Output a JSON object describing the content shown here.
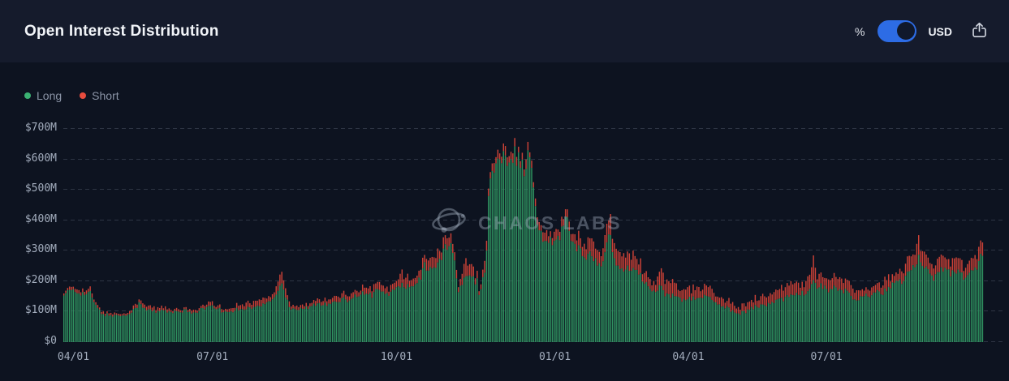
{
  "header": {
    "title": "Open Interest Distribution",
    "toggle": {
      "left_label": "%",
      "right_label": "USD",
      "selected": "USD",
      "color": "#2d6ce5"
    },
    "share_icon": "share-export-icon"
  },
  "legend": [
    {
      "label": "Long",
      "color": "#3bb273"
    },
    {
      "label": "Short",
      "color": "#e64c3e"
    }
  ],
  "watermark": {
    "text": "CHAOS LABS",
    "icon": "chaos-labs-logo-icon"
  },
  "chart_data": {
    "type": "bar",
    "stacked": true,
    "title": "Open Interest Distribution",
    "unit": "USD millions",
    "series_names": [
      "Long",
      "Short"
    ],
    "colors": {
      "long": "#2f9360",
      "short": "#cc4237"
    },
    "ylim": [
      0,
      700
    ],
    "grid": "horizontal-dashed",
    "legend_position": "top-left",
    "y_ticks": [
      {
        "label": "$0",
        "value": 0
      },
      {
        "label": "$100M",
        "value": 100
      },
      {
        "label": "$200M",
        "value": 200
      },
      {
        "label": "$300M",
        "value": 300
      },
      {
        "label": "$400M",
        "value": 400
      },
      {
        "label": "$500M",
        "value": 500
      },
      {
        "label": "$600M",
        "value": 600
      },
      {
        "label": "$700M",
        "value": 700
      }
    ],
    "x_ticks": [
      {
        "label": "04/01",
        "pos": 0.011
      },
      {
        "label": "07/01",
        "pos": 0.162
      },
      {
        "label": "10/01",
        "pos": 0.362
      },
      {
        "label": "01/01",
        "pos": 0.534
      },
      {
        "label": "04/01",
        "pos": 0.679
      },
      {
        "label": "07/01",
        "pos": 0.829
      }
    ],
    "n_bars": 490,
    "anchor_format": "[x_fraction_of_plot, long_$M, short_$M] sampled estimates",
    "anchors": [
      [
        0.0,
        150,
        8
      ],
      [
        0.006,
        168,
        10
      ],
      [
        0.015,
        170,
        12
      ],
      [
        0.024,
        160,
        10
      ],
      [
        0.03,
        158,
        12
      ],
      [
        0.035,
        120,
        10
      ],
      [
        0.041,
        98,
        7
      ],
      [
        0.048,
        88,
        6
      ],
      [
        0.055,
        90,
        7
      ],
      [
        0.063,
        86,
        6
      ],
      [
        0.071,
        92,
        7
      ],
      [
        0.077,
        105,
        9
      ],
      [
        0.083,
        125,
        14
      ],
      [
        0.09,
        108,
        10
      ],
      [
        0.099,
        100,
        10
      ],
      [
        0.108,
        108,
        10
      ],
      [
        0.116,
        96,
        9
      ],
      [
        0.125,
        98,
        8
      ],
      [
        0.134,
        102,
        9
      ],
      [
        0.143,
        96,
        8
      ],
      [
        0.152,
        108,
        10
      ],
      [
        0.159,
        118,
        12
      ],
      [
        0.166,
        112,
        11
      ],
      [
        0.174,
        98,
        9
      ],
      [
        0.183,
        102,
        10
      ],
      [
        0.191,
        108,
        16
      ],
      [
        0.2,
        112,
        18
      ],
      [
        0.209,
        112,
        16
      ],
      [
        0.218,
        120,
        18
      ],
      [
        0.225,
        135,
        14
      ],
      [
        0.231,
        150,
        20
      ],
      [
        0.237,
        195,
        38
      ],
      [
        0.242,
        150,
        25
      ],
      [
        0.247,
        115,
        14
      ],
      [
        0.253,
        108,
        12
      ],
      [
        0.262,
        112,
        12
      ],
      [
        0.271,
        118,
        12
      ],
      [
        0.28,
        125,
        13
      ],
      [
        0.288,
        128,
        14
      ],
      [
        0.297,
        132,
        15
      ],
      [
        0.306,
        138,
        16
      ],
      [
        0.315,
        148,
        16
      ],
      [
        0.322,
        158,
        18
      ],
      [
        0.328,
        162,
        20
      ],
      [
        0.335,
        155,
        18
      ],
      [
        0.341,
        172,
        24
      ],
      [
        0.347,
        160,
        18
      ],
      [
        0.354,
        162,
        20
      ],
      [
        0.362,
        170,
        22
      ],
      [
        0.368,
        196,
        42
      ],
      [
        0.372,
        180,
        30
      ],
      [
        0.377,
        175,
        28
      ],
      [
        0.383,
        190,
        30
      ],
      [
        0.388,
        205,
        25
      ],
      [
        0.392,
        262,
        28
      ],
      [
        0.397,
        225,
        30
      ],
      [
        0.401,
        252,
        33
      ],
      [
        0.406,
        255,
        35
      ],
      [
        0.41,
        265,
        35
      ],
      [
        0.414,
        305,
        35
      ],
      [
        0.418,
        320,
        40
      ],
      [
        0.422,
        315,
        30
      ],
      [
        0.425,
        272,
        28
      ],
      [
        0.429,
        162,
        18
      ],
      [
        0.432,
        185,
        20
      ],
      [
        0.437,
        215,
        50
      ],
      [
        0.441,
        215,
        40
      ],
      [
        0.445,
        210,
        30
      ],
      [
        0.45,
        200,
        25
      ],
      [
        0.453,
        150,
        15
      ],
      [
        0.457,
        220,
        30
      ],
      [
        0.46,
        285,
        35
      ],
      [
        0.463,
        530,
        30
      ],
      [
        0.467,
        575,
        25
      ],
      [
        0.471,
        590,
        25
      ],
      [
        0.476,
        610,
        25
      ],
      [
        0.482,
        600,
        25
      ],
      [
        0.487,
        615,
        28
      ],
      [
        0.49,
        640,
        23
      ],
      [
        0.494,
        600,
        25
      ],
      [
        0.498,
        585,
        20
      ],
      [
        0.503,
        595,
        25
      ],
      [
        0.506,
        590,
        20
      ],
      [
        0.51,
        580,
        25
      ],
      [
        0.512,
        470,
        25
      ],
      [
        0.516,
        370,
        25
      ],
      [
        0.52,
        345,
        25
      ],
      [
        0.526,
        340,
        30
      ],
      [
        0.531,
        325,
        28
      ],
      [
        0.537,
        330,
        30
      ],
      [
        0.543,
        390,
        28
      ],
      [
        0.549,
        400,
        25
      ],
      [
        0.554,
        330,
        30
      ],
      [
        0.559,
        310,
        38
      ],
      [
        0.564,
        280,
        45
      ],
      [
        0.57,
        290,
        45
      ],
      [
        0.575,
        275,
        50
      ],
      [
        0.581,
        255,
        45
      ],
      [
        0.586,
        245,
        40
      ],
      [
        0.591,
        330,
        60
      ],
      [
        0.594,
        340,
        62
      ],
      [
        0.599,
        280,
        45
      ],
      [
        0.603,
        250,
        45
      ],
      [
        0.608,
        240,
        50
      ],
      [
        0.614,
        245,
        50
      ],
      [
        0.619,
        235,
        45
      ],
      [
        0.624,
        230,
        40
      ],
      [
        0.63,
        205,
        35
      ],
      [
        0.635,
        190,
        30
      ],
      [
        0.64,
        165,
        28
      ],
      [
        0.645,
        165,
        35
      ],
      [
        0.649,
        190,
        50
      ],
      [
        0.654,
        155,
        42
      ],
      [
        0.66,
        150,
        40
      ],
      [
        0.665,
        148,
        35
      ],
      [
        0.672,
        142,
        30
      ],
      [
        0.679,
        138,
        30
      ],
      [
        0.686,
        146,
        32
      ],
      [
        0.691,
        138,
        28
      ],
      [
        0.698,
        148,
        30
      ],
      [
        0.706,
        142,
        28
      ],
      [
        0.713,
        122,
        25
      ],
      [
        0.718,
        118,
        22
      ],
      [
        0.723,
        112,
        25
      ],
      [
        0.73,
        98,
        20
      ],
      [
        0.736,
        93,
        20
      ],
      [
        0.743,
        103,
        22
      ],
      [
        0.75,
        112,
        25
      ],
      [
        0.757,
        118,
        28
      ],
      [
        0.764,
        122,
        30
      ],
      [
        0.771,
        132,
        32
      ],
      [
        0.778,
        138,
        30
      ],
      [
        0.784,
        148,
        35
      ],
      [
        0.79,
        158,
        40
      ],
      [
        0.795,
        162,
        35
      ],
      [
        0.801,
        158,
        35
      ],
      [
        0.806,
        162,
        40
      ],
      [
        0.811,
        172,
        40
      ],
      [
        0.815,
        205,
        68
      ],
      [
        0.82,
        178,
        40
      ],
      [
        0.825,
        182,
        35
      ],
      [
        0.831,
        172,
        35
      ],
      [
        0.836,
        178,
        35
      ],
      [
        0.841,
        176,
        32
      ],
      [
        0.847,
        170,
        30
      ],
      [
        0.852,
        168,
        30
      ],
      [
        0.857,
        148,
        28
      ],
      [
        0.862,
        133,
        28
      ],
      [
        0.866,
        143,
        25
      ],
      [
        0.871,
        148,
        22
      ],
      [
        0.877,
        152,
        22
      ],
      [
        0.882,
        158,
        25
      ],
      [
        0.887,
        162,
        28
      ],
      [
        0.892,
        168,
        30
      ],
      [
        0.898,
        182,
        32
      ],
      [
        0.903,
        192,
        30
      ],
      [
        0.908,
        198,
        32
      ],
      [
        0.914,
        208,
        35
      ],
      [
        0.919,
        222,
        40
      ],
      [
        0.924,
        242,
        45
      ],
      [
        0.929,
        278,
        60
      ],
      [
        0.933,
        262,
        45
      ],
      [
        0.937,
        252,
        40
      ],
      [
        0.942,
        232,
        35
      ],
      [
        0.945,
        212,
        30
      ],
      [
        0.951,
        228,
        40
      ],
      [
        0.956,
        238,
        45
      ],
      [
        0.961,
        232,
        45
      ],
      [
        0.966,
        228,
        40
      ],
      [
        0.972,
        232,
        40
      ],
      [
        0.977,
        222,
        35
      ],
      [
        0.981,
        208,
        30
      ],
      [
        0.986,
        238,
        40
      ],
      [
        0.991,
        252,
        40
      ],
      [
        0.995,
        268,
        45
      ],
      [
        1.0,
        278,
        38
      ]
    ]
  }
}
